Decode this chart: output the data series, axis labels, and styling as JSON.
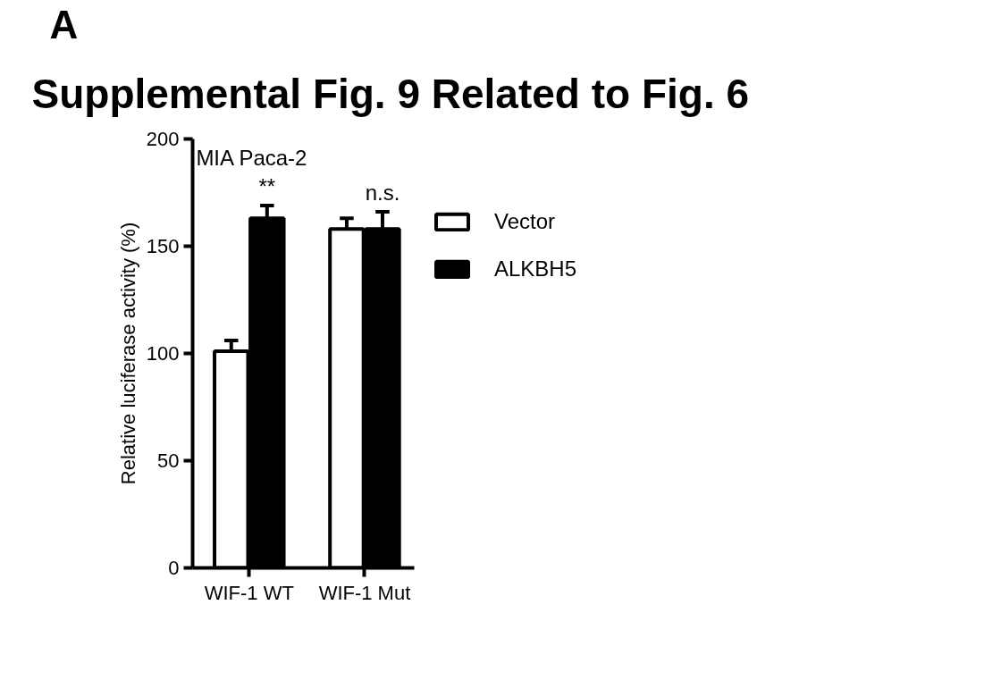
{
  "chart_data": {
    "type": "bar",
    "title": "Supplemental Fig. 9 Related to Fig. 6",
    "ylabel": "Relative luciferase activity (%)",
    "categories": [
      "WIF-1 WT",
      "WIF-1 Mut"
    ],
    "series": [
      {
        "name": "Vector",
        "color": "#ffffff",
        "values": [
          101,
          158
        ],
        "errors": [
          [
            101,
            106
          ],
          [
            158,
            163
          ]
        ]
      },
      {
        "name": "ALKBH5",
        "color": "#000000",
        "values": [
          163,
          158
        ],
        "errors": [
          [
            163,
            169
          ],
          [
            158,
            166
          ]
        ]
      }
    ],
    "ylim": [
      0,
      200
    ],
    "yticks": [
      0,
      50,
      100,
      150,
      200
    ],
    "grid": false,
    "legend": "top right",
    "annotations": [
      "A",
      "MIA Paca-2",
      "**",
      "n.s."
    ]
  }
}
